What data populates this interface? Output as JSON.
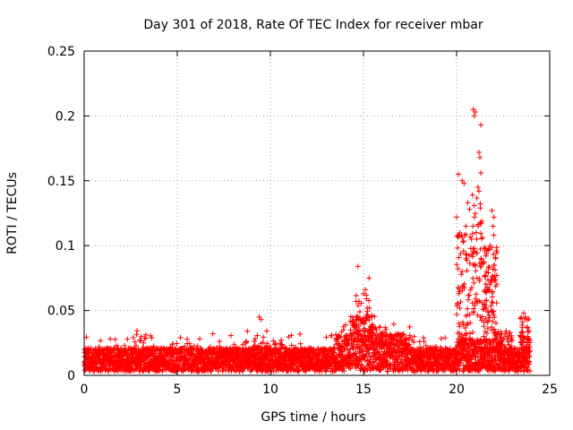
{
  "chart_data": {
    "type": "scatter",
    "title": "Day 301 of 2018, Rate Of TEC Index for receiver mbar",
    "xlabel": "GPS time / hours",
    "ylabel": "ROTI / TECUs",
    "xlim": [
      0,
      25
    ],
    "ylim": [
      0,
      0.25
    ],
    "x_ticks": [
      0,
      5,
      10,
      15,
      20,
      25
    ],
    "x_tick_labels": [
      "0",
      "5",
      "10",
      "15",
      "20",
      "25"
    ],
    "y_ticks": [
      0,
      0.05,
      0.1,
      0.15,
      0.2,
      0.25
    ],
    "y_tick_labels": [
      "0",
      "0.05",
      "0.1",
      "0.15",
      "0.2",
      "0.25"
    ],
    "grid": true,
    "marker": "+",
    "color": "#ff0000",
    "series": [
      {
        "name": "ROTI",
        "notable_points": [
          {
            "x": 9.4,
            "y": 0.045
          },
          {
            "x": 9.5,
            "y": 0.043
          },
          {
            "x": 14.7,
            "y": 0.084
          },
          {
            "x": 15.3,
            "y": 0.075
          },
          {
            "x": 15.1,
            "y": 0.066
          },
          {
            "x": 15.0,
            "y": 0.063
          },
          {
            "x": 14.6,
            "y": 0.057
          },
          {
            "x": 15.2,
            "y": 0.052
          },
          {
            "x": 20.1,
            "y": 0.155
          },
          {
            "x": 20.3,
            "y": 0.15
          },
          {
            "x": 20.4,
            "y": 0.148
          },
          {
            "x": 20.0,
            "y": 0.122
          },
          {
            "x": 20.6,
            "y": 0.133
          },
          {
            "x": 20.7,
            "y": 0.128
          },
          {
            "x": 20.5,
            "y": 0.115
          },
          {
            "x": 20.8,
            "y": 0.105
          },
          {
            "x": 20.9,
            "y": 0.205
          },
          {
            "x": 21.0,
            "y": 0.203
          },
          {
            "x": 20.95,
            "y": 0.2
          },
          {
            "x": 21.3,
            "y": 0.193
          },
          {
            "x": 21.2,
            "y": 0.172
          },
          {
            "x": 21.25,
            "y": 0.168
          },
          {
            "x": 21.3,
            "y": 0.156
          },
          {
            "x": 21.15,
            "y": 0.145
          },
          {
            "x": 21.2,
            "y": 0.142
          },
          {
            "x": 21.1,
            "y": 0.075
          },
          {
            "x": 20.5,
            "y": 0.09
          },
          {
            "x": 20.3,
            "y": 0.08
          },
          {
            "x": 21.9,
            "y": 0.127
          },
          {
            "x": 22.0,
            "y": 0.122
          },
          {
            "x": 21.95,
            "y": 0.115
          },
          {
            "x": 22.0,
            "y": 0.108
          },
          {
            "x": 21.8,
            "y": 0.1
          },
          {
            "x": 22.1,
            "y": 0.09
          },
          {
            "x": 21.7,
            "y": 0.083
          },
          {
            "x": 21.6,
            "y": 0.08
          },
          {
            "x": 20.6,
            "y": 0.04
          },
          {
            "x": 21.5,
            "y": 0.055
          },
          {
            "x": 23.6,
            "y": 0.048
          },
          {
            "x": 23.7,
            "y": 0.045
          }
        ]
      }
    ]
  }
}
